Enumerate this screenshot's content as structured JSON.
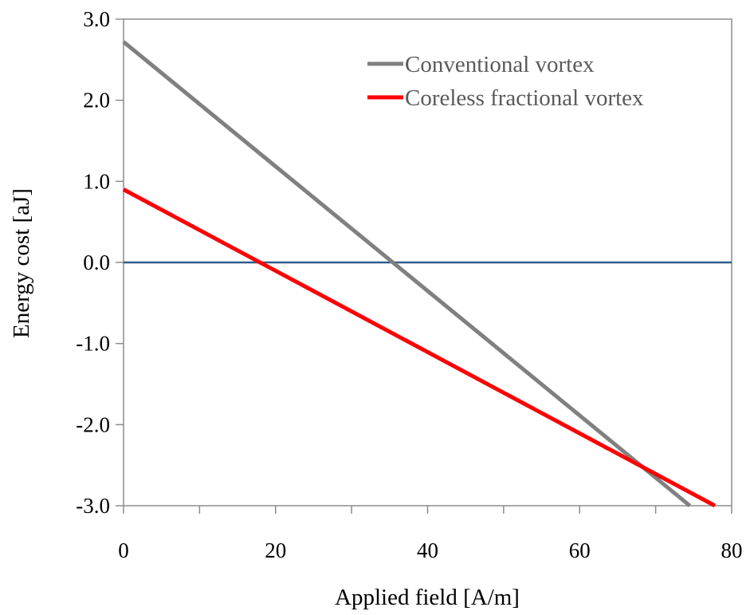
{
  "chart_data": {
    "type": "line",
    "title": "",
    "xlabel": "Applied field [A/m]",
    "ylabel": "Energy cost [aJ]",
    "xlim": [
      0,
      80
    ],
    "ylim": [
      -3.0,
      3.0
    ],
    "x_ticks": [
      "0",
      "20",
      "40",
      "60",
      "80"
    ],
    "y_ticks": [
      "3.0",
      "2.0",
      "1.0",
      "0.0",
      "-1.0",
      "-2.0",
      "-3.0"
    ],
    "grid": false,
    "legend_position": "top-right",
    "reference_line": {
      "y": 0.0,
      "color": "#2f5d8a"
    },
    "series": [
      {
        "name": "Conventional vortex",
        "color": "#808080",
        "x": [
          0,
          74.5
        ],
        "y": [
          2.72,
          -3.0
        ]
      },
      {
        "name": "Coreless fractional vortex",
        "color": "#ff0000",
        "x": [
          0,
          77.8
        ],
        "y": [
          0.9,
          -3.0
        ]
      }
    ]
  }
}
